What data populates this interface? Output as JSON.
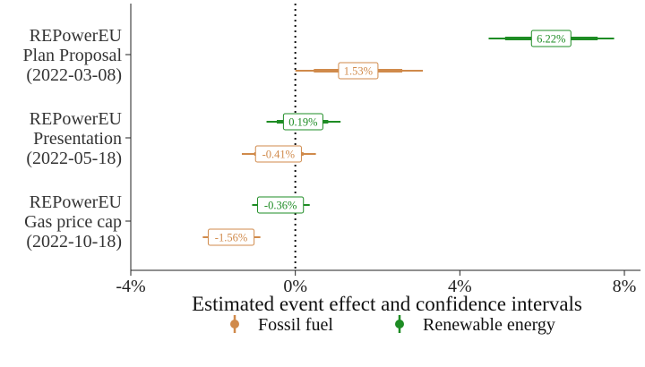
{
  "chart_data": {
    "type": "forest",
    "xlabel": "Estimated event effect and confidence intervals",
    "xlim": [
      -4,
      8
    ],
    "xticks": [
      {
        "value": -4,
        "label": "-4%"
      },
      {
        "value": 0,
        "label": "0%"
      },
      {
        "value": 4,
        "label": "4%"
      },
      {
        "value": 8,
        "label": "8%"
      }
    ],
    "reference_line": {
      "value": 0,
      "style": "dotted"
    },
    "grid": false,
    "legend_position": "bottom",
    "series": [
      {
        "key": "fossil",
        "name": "Fossil fuel",
        "color": "#d08a4b"
      },
      {
        "key": "renewable",
        "name": "Renewable energy",
        "color": "#1e8c24"
      }
    ],
    "groups": [
      {
        "label_lines": [
          "REPowerEU",
          "Plan Proposal",
          "(2022-03-08)"
        ],
        "estimates": [
          {
            "series": "renewable",
            "estimate": 6.22,
            "label": "6.22%",
            "ci95": [
              4.7,
              7.75
            ],
            "ci_inner": [
              5.1,
              7.35
            ]
          },
          {
            "series": "fossil",
            "estimate": 1.53,
            "label": "1.53%",
            "ci95": [
              0.0,
              3.1
            ],
            "ci_inner": [
              0.45,
              2.6
            ]
          }
        ]
      },
      {
        "label_lines": [
          "REPowerEU",
          "Presentation",
          "(2022-05-18)"
        ],
        "estimates": [
          {
            "series": "renewable",
            "estimate": 0.19,
            "label": "0.19%",
            "ci95": [
              -0.7,
              1.1
            ],
            "ci_inner": [
              -0.45,
              0.8
            ]
          },
          {
            "series": "fossil",
            "estimate": -0.41,
            "label": "-0.41%",
            "ci95": [
              -1.3,
              0.5
            ],
            "ci_inner": [
              -1.0,
              0.2
            ]
          }
        ]
      },
      {
        "label_lines": [
          "REPowerEU",
          "Gas price cap",
          "(2022-10-18)"
        ],
        "estimates": [
          {
            "series": "renewable",
            "estimate": -0.36,
            "label": "-0.36%",
            "ci95": [
              -1.05,
              0.35
            ],
            "ci_inner": [
              -0.8,
              0.1
            ]
          },
          {
            "series": "fossil",
            "estimate": -1.56,
            "label": "-1.56%",
            "ci95": [
              -2.25,
              -0.85
            ],
            "ci_inner": [
              -2.0,
              -1.1
            ]
          }
        ]
      }
    ]
  }
}
